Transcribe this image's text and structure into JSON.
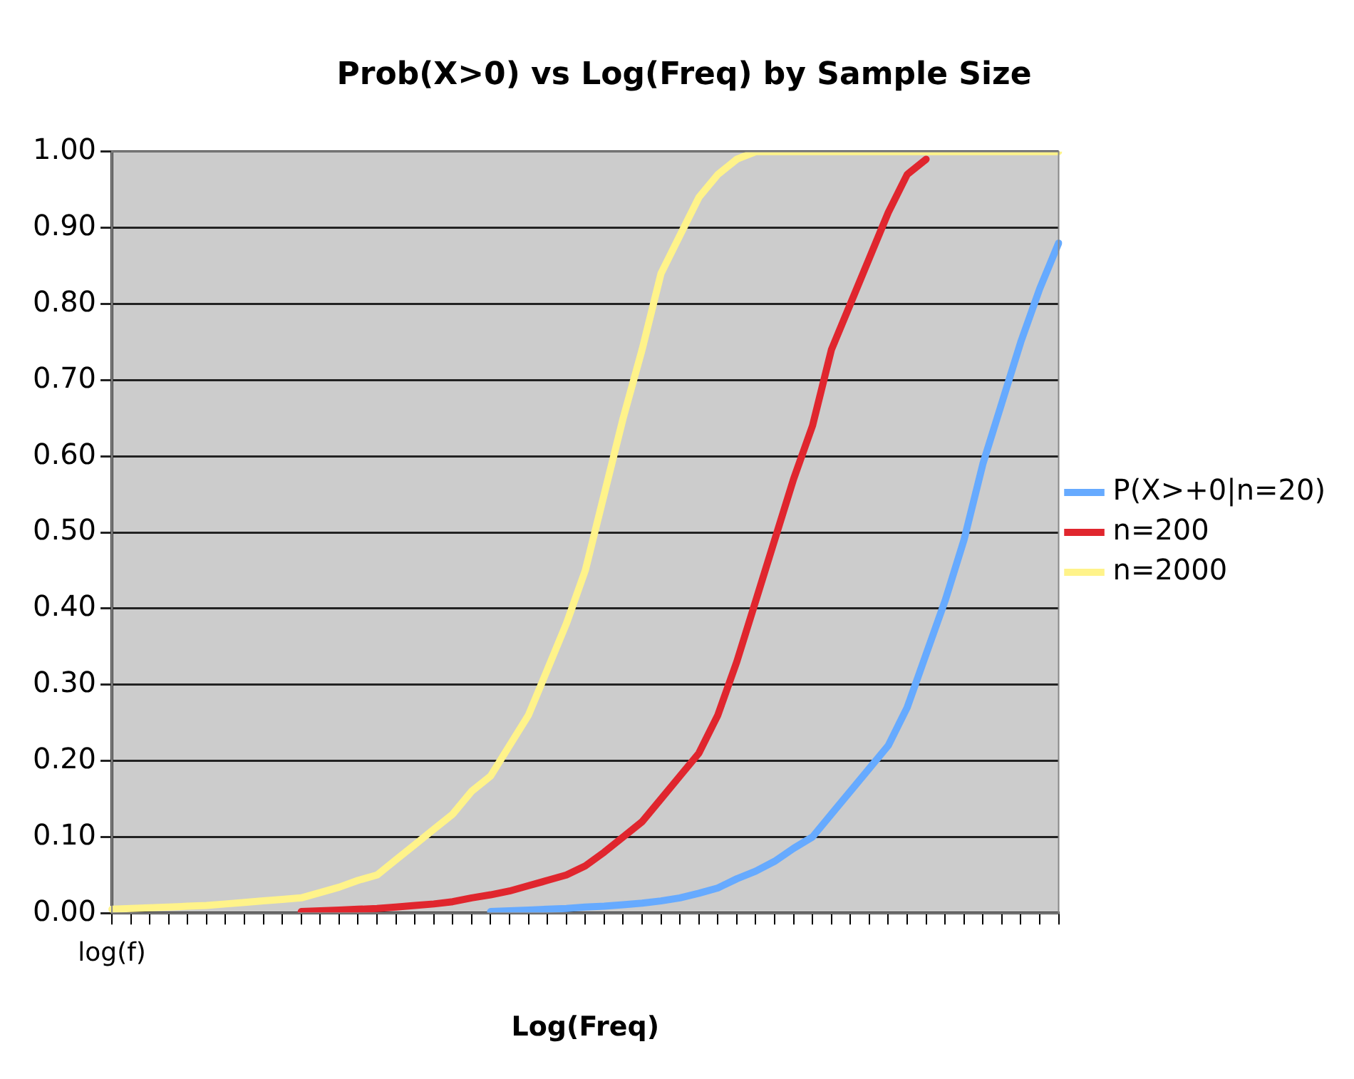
{
  "chart_data": {
    "type": "line",
    "title": "Prob(X>0) vs Log(Freq) by Sample Size",
    "xlabel": "Log(Freq)",
    "categories": [
      "log(f)",
      null,
      null,
      null,
      null,
      null,
      null,
      null,
      null,
      null,
      null,
      null,
      null,
      null,
      null,
      null,
      null,
      null,
      null,
      null,
      null,
      null,
      null,
      null,
      null,
      null,
      null,
      null,
      null,
      null,
      null,
      null,
      null,
      null,
      null,
      null,
      null,
      null,
      null,
      null,
      null,
      null,
      null,
      null,
      null,
      null,
      null,
      null,
      null,
      null,
      null
    ],
    "series": [
      {
        "name": "P(X>+0|n=20)",
        "color": "#66aaff",
        "values": [
          null,
          null,
          null,
          null,
          null,
          null,
          null,
          null,
          null,
          null,
          null,
          null,
          null,
          null,
          null,
          null,
          null,
          null,
          null,
          null,
          0.002,
          0.003,
          0.004,
          0.005,
          0.006,
          0.008,
          0.009,
          0.011,
          0.013,
          0.016,
          0.02,
          0.026,
          0.033,
          0.045,
          0.055,
          0.068,
          0.085,
          0.1,
          0.13,
          0.16,
          0.19,
          0.22,
          0.27,
          0.34,
          0.41,
          0.49,
          0.59,
          0.67,
          0.75,
          0.82,
          0.88
        ]
      },
      {
        "name": "n=200",
        "color": "#e0262e",
        "values": [
          null,
          null,
          null,
          null,
          null,
          null,
          null,
          null,
          null,
          null,
          0.002,
          0.003,
          0.004,
          0.005,
          0.006,
          0.008,
          0.01,
          0.012,
          0.015,
          0.02,
          0.024,
          0.029,
          0.036,
          0.043,
          0.05,
          0.062,
          0.08,
          0.1,
          0.12,
          0.15,
          0.18,
          0.21,
          0.26,
          0.33,
          0.41,
          0.49,
          0.57,
          0.64,
          0.74,
          0.8,
          0.86,
          0.92,
          0.97,
          0.99,
          null,
          null,
          null,
          null,
          null,
          null,
          null
        ]
      },
      {
        "name": "n=2000",
        "color": "#fff38a",
        "values": [
          0.005,
          0.006,
          0.007,
          0.008,
          0.009,
          0.01,
          0.012,
          0.014,
          0.016,
          0.018,
          0.02,
          0.027,
          0.034,
          0.043,
          0.05,
          0.07,
          0.09,
          0.11,
          0.13,
          0.16,
          0.18,
          0.22,
          0.26,
          0.32,
          0.38,
          0.45,
          0.55,
          0.65,
          0.74,
          0.84,
          0.89,
          0.94,
          0.97,
          0.99,
          1.0,
          1.0,
          1.0,
          1.0,
          1.0,
          1.0,
          1.0,
          1.0,
          1.0,
          1.0,
          1.0,
          1.0,
          1.0,
          1.0,
          1.0,
          1.0,
          1.0
        ]
      }
    ],
    "ylim": [
      0,
      1
    ],
    "yticks": [
      {
        "value": 0,
        "label": "0.00"
      },
      {
        "value": 0.1,
        "label": "0.10"
      },
      {
        "value": 0.2,
        "label": "0.20"
      },
      {
        "value": 0.3,
        "label": "0.30"
      },
      {
        "value": 0.4,
        "label": "0.40"
      },
      {
        "value": 0.5,
        "label": "0.50"
      },
      {
        "value": 0.6,
        "label": "0.60"
      },
      {
        "value": 0.7,
        "label": "0.70"
      },
      {
        "value": 0.8,
        "label": "0.80"
      },
      {
        "value": 0.9,
        "label": "0.90"
      },
      {
        "value": 1,
        "label": "1.00"
      }
    ],
    "grid": "y",
    "legend": "right",
    "marker": "none",
    "line_style": "solid"
  }
}
